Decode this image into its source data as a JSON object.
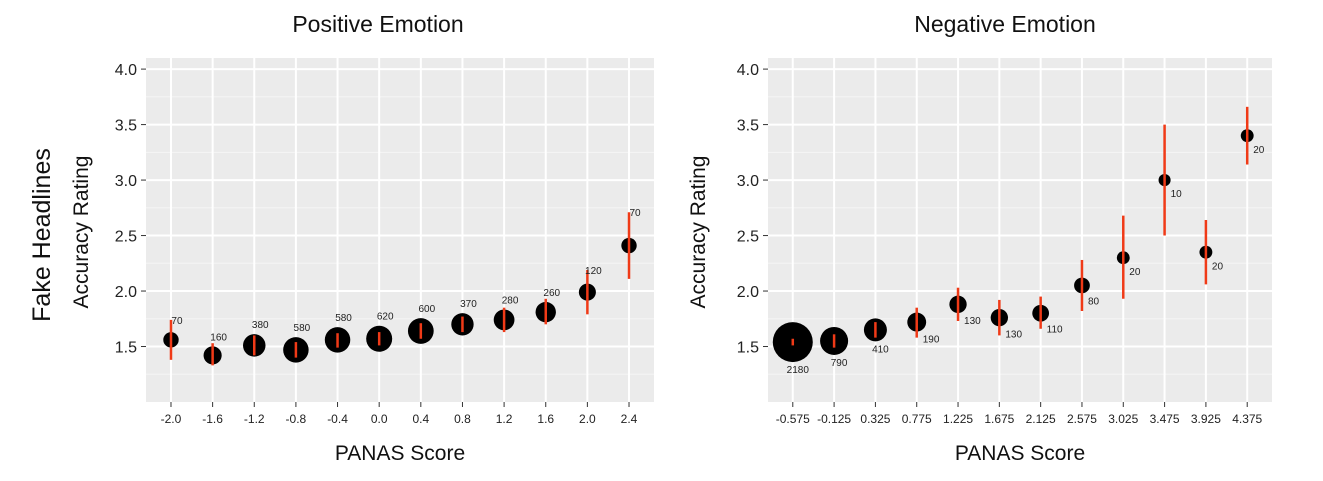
{
  "figure": {
    "side_label": "Fake Headlines"
  },
  "chart_data": [
    {
      "type": "scatter",
      "title": "Positive Emotion",
      "xlabel": "PANAS Score",
      "ylabel": "Accuracy Rating",
      "ylim": [
        1.0,
        4.1
      ],
      "yticks": [
        "1.5",
        "2.0",
        "2.5",
        "3.0",
        "3.5",
        "4.0"
      ],
      "grid": true,
      "x": [
        "-2.0",
        "-1.6",
        "-1.2",
        "-0.8",
        "-0.4",
        "0.0",
        "0.4",
        "0.8",
        "1.2",
        "1.6",
        "2.0",
        "2.4"
      ],
      "y": [
        1.56,
        1.42,
        1.51,
        1.47,
        1.56,
        1.57,
        1.64,
        1.7,
        1.74,
        1.81,
        1.99,
        2.41
      ],
      "error_low": [
        1.38,
        1.33,
        1.42,
        1.4,
        1.49,
        1.51,
        1.57,
        1.63,
        1.63,
        1.7,
        1.79,
        2.11
      ],
      "error_high": [
        1.74,
        1.53,
        1.6,
        1.54,
        1.62,
        1.63,
        1.71,
        1.77,
        1.85,
        1.93,
        2.19,
        2.71
      ],
      "counts": [
        "70",
        "160",
        "380",
        "580",
        "580",
        "620",
        "600",
        "370",
        "280",
        "260",
        "120",
        "70"
      ],
      "error_color": "#f03a17",
      "point_color": "#000000"
    },
    {
      "type": "scatter",
      "title": "Negative Emotion",
      "xlabel": "PANAS Score",
      "ylabel": "Accuracy Rating",
      "ylim": [
        1.0,
        4.1
      ],
      "yticks": [
        "1.5",
        "2.0",
        "2.5",
        "3.0",
        "3.5",
        "4.0"
      ],
      "grid": true,
      "x": [
        "-0.575",
        "-0.125",
        "0.325",
        "0.775",
        "1.225",
        "1.675",
        "2.125",
        "2.575",
        "3.025",
        "3.475",
        "3.925",
        "4.375"
      ],
      "y": [
        1.54,
        1.55,
        1.65,
        1.72,
        1.88,
        1.76,
        1.8,
        2.05,
        2.3,
        3.0,
        2.35,
        3.4
      ],
      "error_low": [
        1.51,
        1.49,
        1.58,
        1.58,
        1.73,
        1.6,
        1.66,
        1.82,
        1.93,
        2.5,
        2.06,
        3.14
      ],
      "error_high": [
        1.57,
        1.61,
        1.72,
        1.85,
        2.03,
        1.92,
        1.95,
        2.28,
        2.68,
        3.5,
        2.64,
        3.66
      ],
      "counts": [
        "2180",
        "790",
        "410",
        "190",
        "130",
        "130",
        "110",
        "80",
        "20",
        "10",
        "20",
        "20"
      ],
      "error_color": "#f03a17",
      "point_color": "#000000"
    }
  ]
}
